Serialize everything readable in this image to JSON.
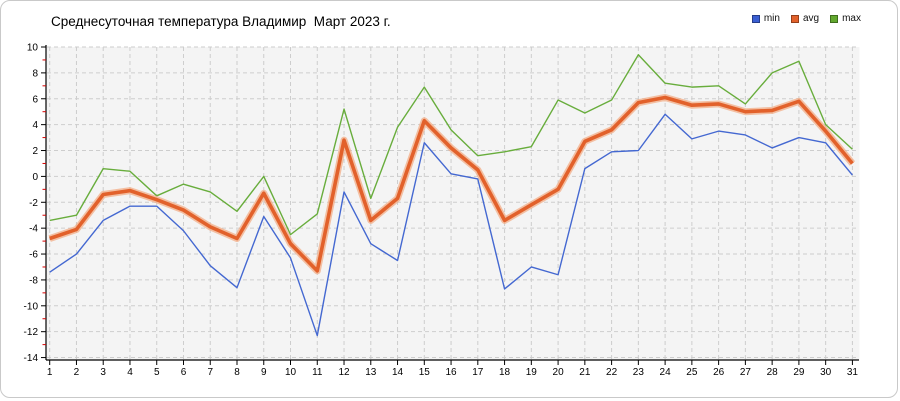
{
  "chart": {
    "title": "Среднесуточная температура Владимир  Март 2023 г.",
    "legend": [
      {
        "label": "min",
        "color": "#3a5fd3"
      },
      {
        "label": "avg",
        "color": "#e2612b"
      },
      {
        "label": "max",
        "color": "#62a82e"
      }
    ]
  },
  "chart_data": {
    "type": "line",
    "title": "Среднесуточная температура Владимир  Март 2023 г.",
    "x": [
      1,
      2,
      3,
      4,
      5,
      6,
      7,
      8,
      9,
      10,
      11,
      12,
      13,
      14,
      15,
      16,
      17,
      18,
      19,
      20,
      21,
      22,
      23,
      24,
      25,
      26,
      27,
      28,
      29,
      30,
      31
    ],
    "series": [
      {
        "name": "min",
        "color": "#4468d1",
        "values": [
          -7.4,
          -6.0,
          -3.4,
          -2.3,
          -2.3,
          -4.2,
          -6.9,
          -8.6,
          -3.1,
          -6.3,
          -12.3,
          -1.2,
          -5.2,
          -6.5,
          2.6,
          0.2,
          -0.2,
          -8.7,
          -7.0,
          -7.6,
          0.6,
          1.9,
          2.0,
          4.8,
          2.9,
          3.5,
          3.2,
          2.2,
          3.0,
          2.6,
          0.1
        ]
      },
      {
        "name": "avg",
        "color": "#e2612b",
        "values": [
          -4.8,
          -4.1,
          -1.4,
          -1.1,
          -1.8,
          -2.6,
          -3.9,
          -4.8,
          -1.3,
          -5.2,
          -7.3,
          2.8,
          -3.4,
          -1.7,
          4.3,
          2.2,
          0.5,
          -3.4,
          -2.2,
          -1.0,
          2.7,
          3.6,
          5.7,
          6.1,
          5.5,
          5.6,
          5.0,
          5.1,
          5.8,
          3.5,
          1.0
        ]
      },
      {
        "name": "max",
        "color": "#68ad3c",
        "values": [
          -3.4,
          -3.0,
          0.6,
          0.4,
          -1.5,
          -0.6,
          -1.2,
          -2.7,
          0.0,
          -4.5,
          -2.9,
          5.2,
          -1.7,
          3.8,
          6.9,
          3.6,
          1.6,
          1.9,
          2.3,
          5.9,
          4.9,
          5.9,
          9.4,
          7.2,
          6.9,
          7.0,
          5.6,
          8.0,
          8.9,
          4.0,
          2.1
        ]
      }
    ],
    "ylim": [
      -14,
      10
    ],
    "y_ticks": [
      10,
      8,
      6,
      4,
      2,
      0,
      -2,
      -4,
      -6,
      -8,
      -10,
      -12,
      -14
    ],
    "xlabel": "",
    "ylabel": "",
    "grid": true,
    "legend_position": "top-right",
    "styles": {
      "plot_bg": "#f4f4f4",
      "grid_color": "#cdcdcd",
      "axis_color": "#000000",
      "minor_tick_color": "#d40000",
      "avg_halo_color": "#f3ad87"
    }
  }
}
